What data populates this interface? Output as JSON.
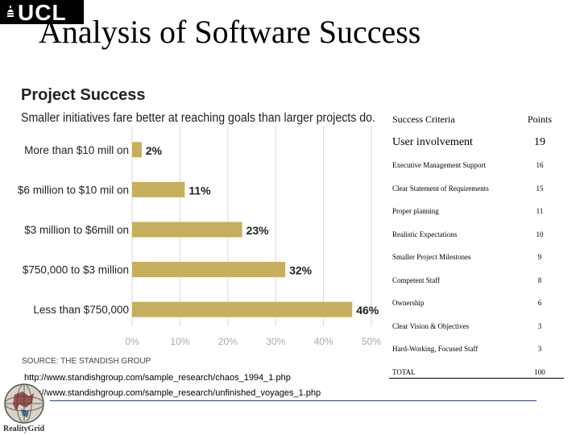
{
  "logo": {
    "text": "UCL",
    "icon": "ucl-dome-icon"
  },
  "slide_title": "Analysis of Software Success",
  "chart_data": {
    "type": "bar",
    "orientation": "horizontal",
    "title": "Project Success",
    "subtitle": "Smaller initiatives fare better at reaching goals than larger projects do.",
    "categories": [
      "More than $10 mill on",
      "$6 million to $10 mil on",
      "$3 million to $6mill on",
      "$750,000 to $3 million",
      "Less than $750,000"
    ],
    "values": [
      2,
      11,
      23,
      32,
      46
    ],
    "value_labels": [
      "2%",
      "11%",
      "23%",
      "32%",
      "46%"
    ],
    "x_ticks": [
      "0%",
      "10%",
      "20%",
      "30%",
      "40%",
      "50%"
    ],
    "xlim": [
      0,
      50
    ],
    "source": "SOURCE: THE STANDISH GROUP",
    "bar_color": "#c7ad5e",
    "grid": true
  },
  "table": {
    "headers": [
      "Success Criteria",
      "Points"
    ],
    "rows": [
      {
        "criteria": "User involvement",
        "points": "19"
      },
      {
        "criteria": "Executive Management Support",
        "points": "16"
      },
      {
        "criteria": "Clear Statement of Requirements",
        "points": "15"
      },
      {
        "criteria": "Proper planning",
        "points": "11"
      },
      {
        "criteria": "Realistic Expectations",
        "points": "10"
      },
      {
        "criteria": "Smaller Project Milestones",
        "points": "9"
      },
      {
        "criteria": "Competent Staff",
        "points": "8"
      },
      {
        "criteria": "Ownership",
        "points": "6"
      },
      {
        "criteria": "Clear Vision & Objectives",
        "points": "3"
      },
      {
        "criteria": "Hard-Working, Focused Staff",
        "points": "3"
      },
      {
        "criteria": "TOTAL",
        "points": "100"
      }
    ]
  },
  "links": [
    "http://www.standishgroup.com/sample_research/chaos_1994_1.php",
    "http://www.standishgroup.com/sample_research/unfinished_voyages_1.php"
  ],
  "footer_logo": {
    "text": "RealityGrid",
    "icon": "realitygrid-globe-icon"
  }
}
